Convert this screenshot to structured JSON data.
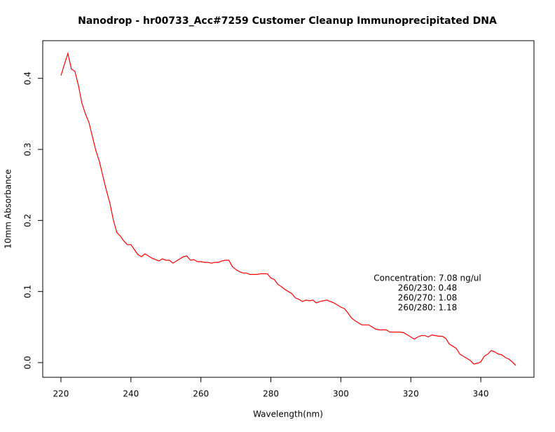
{
  "chart_data": {
    "type": "line",
    "title": "Nanodrop - hr00733_Acc#7259  Customer Cleanup Immunoprecipitated DNA",
    "x_label": "Wavelength(nm)",
    "y_label": "10mm Absorbance",
    "annotations": [
      "Concentration: 7.08 ng/ul",
      "260/230: 0.48",
      "260/270: 1.08",
      "260/280: 1.18"
    ],
    "xlim": [
      214.8,
      355.2
    ],
    "ylim": [
      -0.0207,
      0.453
    ],
    "xticks": [
      220,
      240,
      260,
      280,
      300,
      320,
      340
    ],
    "yticks": [
      {
        "value": 0,
        "label": "0.0"
      },
      0.1,
      0.2,
      0.3,
      0.4
    ],
    "series": [
      {
        "color": "#ff0000",
        "x": [
          220,
          221,
          222,
          223,
          224,
          225,
          226,
          227,
          228,
          229,
          230,
          231,
          232,
          233,
          234,
          235,
          236,
          237,
          238,
          239,
          240,
          241,
          242,
          243,
          244,
          245,
          246,
          247,
          248,
          249,
          250,
          251,
          252,
          253,
          254,
          255,
          256,
          257,
          258,
          259,
          260,
          261,
          262,
          263,
          264,
          265,
          266,
          267,
          268,
          269,
          270,
          271,
          272,
          273,
          274,
          275,
          276,
          277,
          278,
          279,
          280,
          281,
          282,
          283,
          284,
          285,
          286,
          287,
          288,
          289,
          290,
          291,
          292,
          293,
          294,
          295,
          296,
          297,
          298,
          299,
          300,
          301,
          302,
          303,
          304,
          305,
          306,
          307,
          308,
          309,
          310,
          311,
          312,
          313,
          314,
          315,
          316,
          317,
          318,
          319,
          320,
          321,
          322,
          323,
          324,
          325,
          326,
          327,
          328,
          329,
          330,
          331,
          332,
          333,
          334,
          335,
          336,
          337,
          338,
          339,
          340,
          341,
          342,
          343,
          344,
          345,
          346,
          347,
          348,
          349,
          350
        ],
        "values": [
          0.404,
          0.42,
          0.435,
          0.413,
          0.41,
          0.39,
          0.365,
          0.35,
          0.338,
          0.318,
          0.298,
          0.283,
          0.262,
          0.242,
          0.224,
          0.2,
          0.183,
          0.178,
          0.171,
          0.166,
          0.166,
          0.159,
          0.152,
          0.149,
          0.153,
          0.15,
          0.147,
          0.145,
          0.143,
          0.146,
          0.144,
          0.144,
          0.14,
          0.143,
          0.146,
          0.149,
          0.15,
          0.144,
          0.145,
          0.142,
          0.142,
          0.141,
          0.141,
          0.14,
          0.141,
          0.141,
          0.143,
          0.144,
          0.144,
          0.135,
          0.131,
          0.128,
          0.126,
          0.126,
          0.124,
          0.124,
          0.124,
          0.125,
          0.125,
          0.125,
          0.119,
          0.117,
          0.11,
          0.107,
          0.103,
          0.1,
          0.097,
          0.091,
          0.089,
          0.086,
          0.088,
          0.087,
          0.088,
          0.084,
          0.086,
          0.087,
          0.088,
          0.086,
          0.084,
          0.081,
          0.078,
          0.076,
          0.07,
          0.063,
          0.059,
          0.056,
          0.053,
          0.053,
          0.053,
          0.05,
          0.047,
          0.046,
          0.046,
          0.046,
          0.043,
          0.043,
          0.043,
          0.043,
          0.042,
          0.039,
          0.036,
          0.033,
          0.036,
          0.038,
          0.038,
          0.036,
          0.039,
          0.038,
          0.037,
          0.037,
          0.034,
          0.026,
          0.023,
          0.02,
          0.012,
          0.009,
          0.006,
          0.003,
          -0.002,
          -0.001,
          0.001,
          0.009,
          0.012,
          0.017,
          0.015,
          0.012,
          0.011,
          0.007,
          0.005,
          0.001,
          -0.004
        ]
      }
    ]
  }
}
